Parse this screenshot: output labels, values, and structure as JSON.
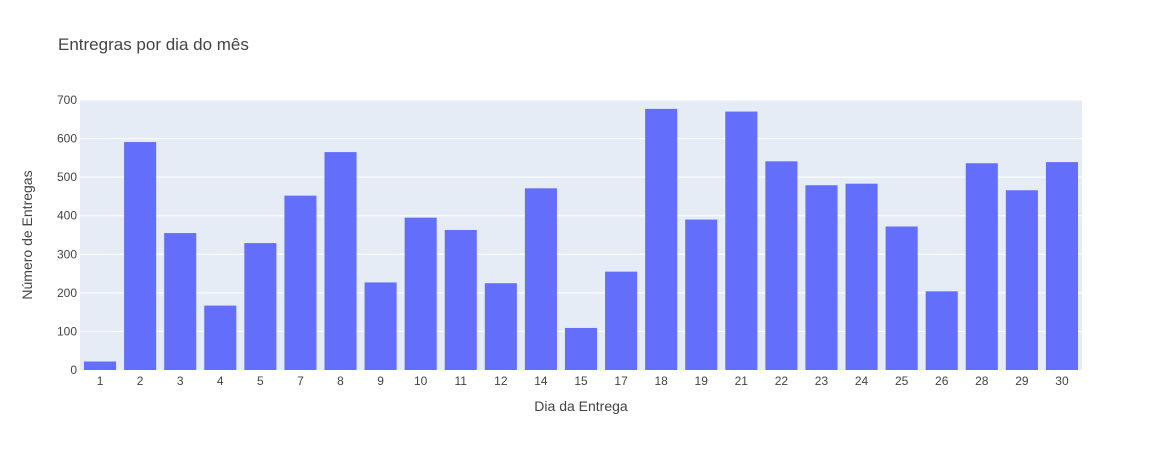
{
  "chart_data": {
    "type": "bar",
    "title": "Entregras por dia do mês",
    "xlabel": "Dia da Entrega",
    "ylabel": "Número de Entregas",
    "categories": [
      "1",
      "2",
      "3",
      "4",
      "5",
      "7",
      "8",
      "9",
      "10",
      "11",
      "12",
      "14",
      "15",
      "17",
      "18",
      "19",
      "21",
      "22",
      "23",
      "24",
      "25",
      "26",
      "28",
      "29",
      "30"
    ],
    "values": [
      22,
      591,
      355,
      167,
      329,
      452,
      565,
      227,
      395,
      363,
      225,
      471,
      109,
      255,
      677,
      390,
      670,
      541,
      479,
      483,
      372,
      204,
      536,
      466,
      539
    ],
    "ylim": [
      0,
      700
    ],
    "yticks": [
      0,
      100,
      200,
      300,
      400,
      500,
      600,
      700
    ],
    "grid": true,
    "colors": {
      "bar": "#636efa",
      "plot_background": "#e5ecf6",
      "gridline": "#ffffff",
      "text": "#444444"
    }
  }
}
